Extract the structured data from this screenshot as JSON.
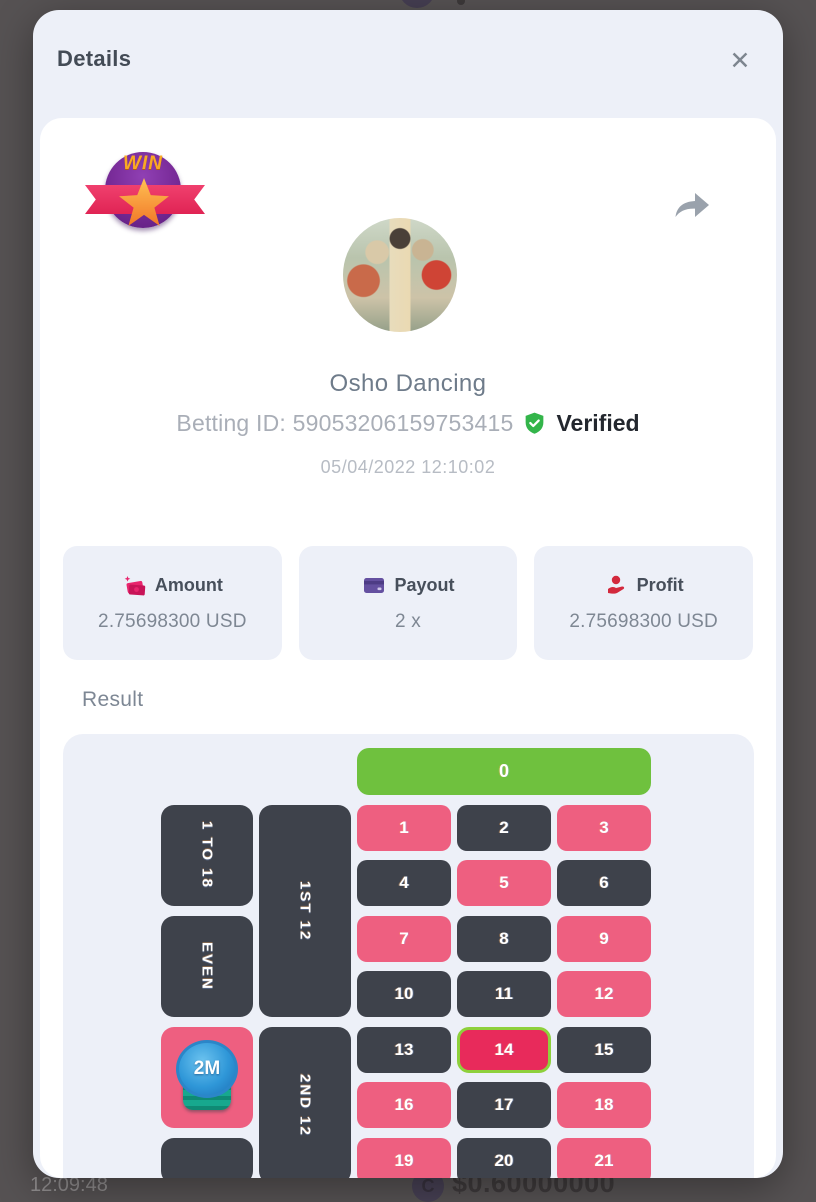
{
  "page": {
    "bottom_time": "12:09:48",
    "bottom_amount": "$0.60000000",
    "coin_letter": "C"
  },
  "modal": {
    "title": "Details",
    "close_glyph": "✕",
    "badge_text": "WIN",
    "user": {
      "name": "Osho Dancing",
      "betting_id": "Betting ID: 59053206159753415",
      "verified_label": "Verified",
      "datetime": "05/04/2022 12:10:02"
    },
    "stats": [
      {
        "label": "Amount",
        "value": "2.75698300 USD",
        "icon": "money-icon",
        "icon_color": "#e8256d"
      },
      {
        "label": "Payout",
        "value": "2 x",
        "icon": "credit-card-icon",
        "icon_color": "#6450a0"
      },
      {
        "label": "Profit",
        "value": "2.75698300 USD",
        "icon": "hand-coin-icon",
        "icon_color": "#d3293d"
      }
    ],
    "result_label": "Result"
  },
  "roulette": {
    "winning_number": "14",
    "colors": {
      "green": "#6fc13e",
      "red": "#ee5f80",
      "dark": "#3e424b",
      "win": "#e82a5b",
      "win_border": "#8ed03c"
    },
    "cells": [
      {
        "name": "cell-zero",
        "label": "0",
        "color": "green",
        "col": 3,
        "row": 1,
        "colspan": 3,
        "shape": "zero"
      },
      {
        "name": "bet-1to18",
        "label": "1 TO 18",
        "color": "dark",
        "col": 1,
        "row": 2,
        "rowspan": 2,
        "vertical": true,
        "shape": "side"
      },
      {
        "name": "bet-even",
        "label": "EVEN",
        "color": "dark",
        "col": 1,
        "row": 4,
        "rowspan": 2,
        "vertical": true,
        "shape": "side"
      },
      {
        "name": "bet-red",
        "label": "",
        "color": "red",
        "col": 1,
        "row": 6,
        "rowspan": 2,
        "chip": "2M",
        "shape": "side"
      },
      {
        "name": "bet-black",
        "label": "",
        "color": "dark",
        "col": 1,
        "row": 8,
        "shape": "side"
      },
      {
        "name": "dozen-1st-12",
        "label": "1ST 12",
        "color": "dark",
        "col": 2,
        "row": 2,
        "rowspan": 4,
        "vertical": true,
        "shape": "side"
      },
      {
        "name": "dozen-2nd-12",
        "label": "2ND 12",
        "color": "dark",
        "col": 2,
        "row": 6,
        "rowspan": 3,
        "vertical": true,
        "shape": "side"
      },
      {
        "name": "num-1",
        "label": "1",
        "color": "red",
        "col": 3,
        "row": 2
      },
      {
        "name": "num-2",
        "label": "2",
        "color": "dark",
        "col": 4,
        "row": 2
      },
      {
        "name": "num-3",
        "label": "3",
        "color": "red",
        "col": 5,
        "row": 2
      },
      {
        "name": "num-4",
        "label": "4",
        "color": "dark",
        "col": 3,
        "row": 3
      },
      {
        "name": "num-5",
        "label": "5",
        "color": "red",
        "col": 4,
        "row": 3
      },
      {
        "name": "num-6",
        "label": "6",
        "color": "dark",
        "col": 5,
        "row": 3
      },
      {
        "name": "num-7",
        "label": "7",
        "color": "red",
        "col": 3,
        "row": 4
      },
      {
        "name": "num-8",
        "label": "8",
        "color": "dark",
        "col": 4,
        "row": 4
      },
      {
        "name": "num-9",
        "label": "9",
        "color": "red",
        "col": 5,
        "row": 4
      },
      {
        "name": "num-10",
        "label": "10",
        "color": "dark",
        "col": 3,
        "row": 5
      },
      {
        "name": "num-11",
        "label": "11",
        "color": "dark",
        "col": 4,
        "row": 5
      },
      {
        "name": "num-12",
        "label": "12",
        "color": "red",
        "col": 5,
        "row": 5
      },
      {
        "name": "num-13",
        "label": "13",
        "color": "dark",
        "col": 3,
        "row": 6
      },
      {
        "name": "num-14",
        "label": "14",
        "color": "win",
        "col": 4,
        "row": 6,
        "win": true
      },
      {
        "name": "num-15",
        "label": "15",
        "color": "dark",
        "col": 5,
        "row": 6
      },
      {
        "name": "num-16",
        "label": "16",
        "color": "red",
        "col": 3,
        "row": 7
      },
      {
        "name": "num-17",
        "label": "17",
        "color": "dark",
        "col": 4,
        "row": 7
      },
      {
        "name": "num-18",
        "label": "18",
        "color": "red",
        "col": 5,
        "row": 7
      },
      {
        "name": "num-19",
        "label": "19",
        "color": "red",
        "col": 3,
        "row": 8
      },
      {
        "name": "num-20",
        "label": "20",
        "color": "dark",
        "col": 4,
        "row": 8
      },
      {
        "name": "num-21",
        "label": "21",
        "color": "red",
        "col": 5,
        "row": 8
      }
    ]
  }
}
